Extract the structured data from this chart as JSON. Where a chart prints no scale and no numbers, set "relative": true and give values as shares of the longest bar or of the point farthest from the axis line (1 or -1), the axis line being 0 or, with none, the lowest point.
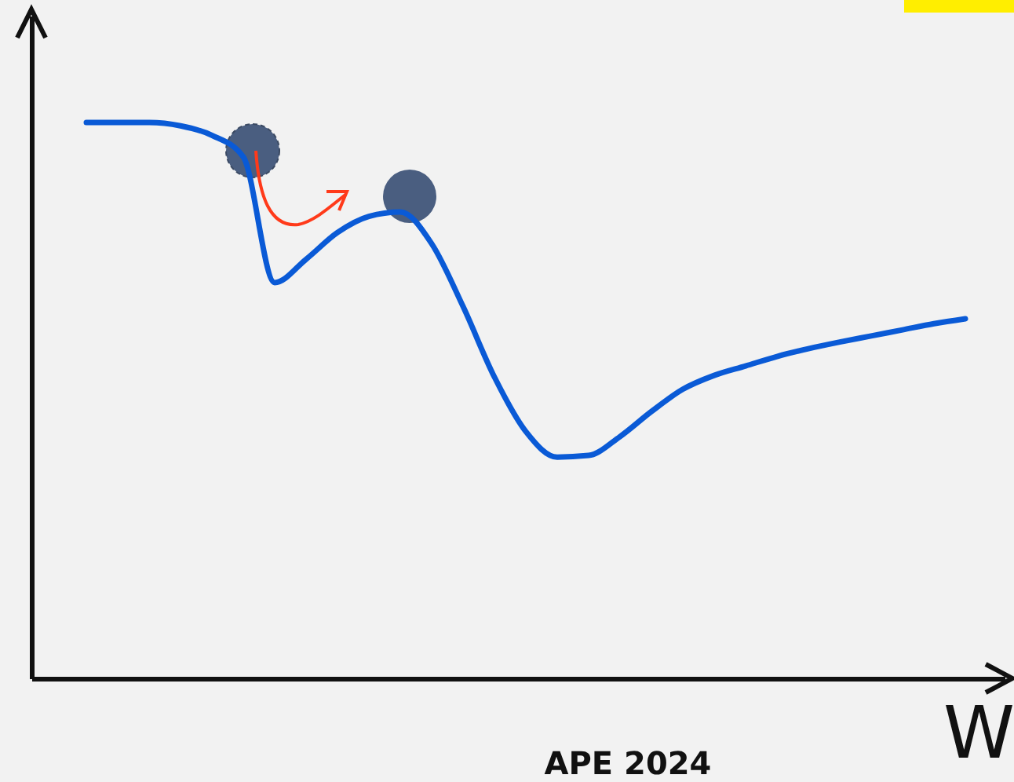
{
  "chart_data": {
    "type": "line",
    "relative": true,
    "xlabel": "W",
    "categories": [
      null,
      null,
      null,
      null,
      null,
      null,
      null,
      null,
      null,
      null,
      null,
      null,
      null,
      null,
      null,
      null,
      null,
      null,
      null,
      null,
      null,
      null,
      null,
      null,
      null,
      null,
      null,
      null,
      null
    ],
    "series": [
      {
        "color": "#0a5ad6",
        "values": [
          1.0,
          1.0,
          1.0,
          0.994,
          0.977,
          0.938,
          0.712,
          0.754,
          0.802,
          0.831,
          0.839,
          0.782,
          0.669,
          0.542,
          0.444,
          0.398,
          0.401,
          0.435,
          0.48,
          0.52,
          0.545,
          0.562,
          0.579,
          0.593,
          0.605,
          0.616,
          0.627,
          0.638,
          0.647
        ]
      }
    ],
    "marker": "none",
    "line_style": "solid",
    "grid": false,
    "annotations": [
      "APE 2024"
    ]
  }
}
